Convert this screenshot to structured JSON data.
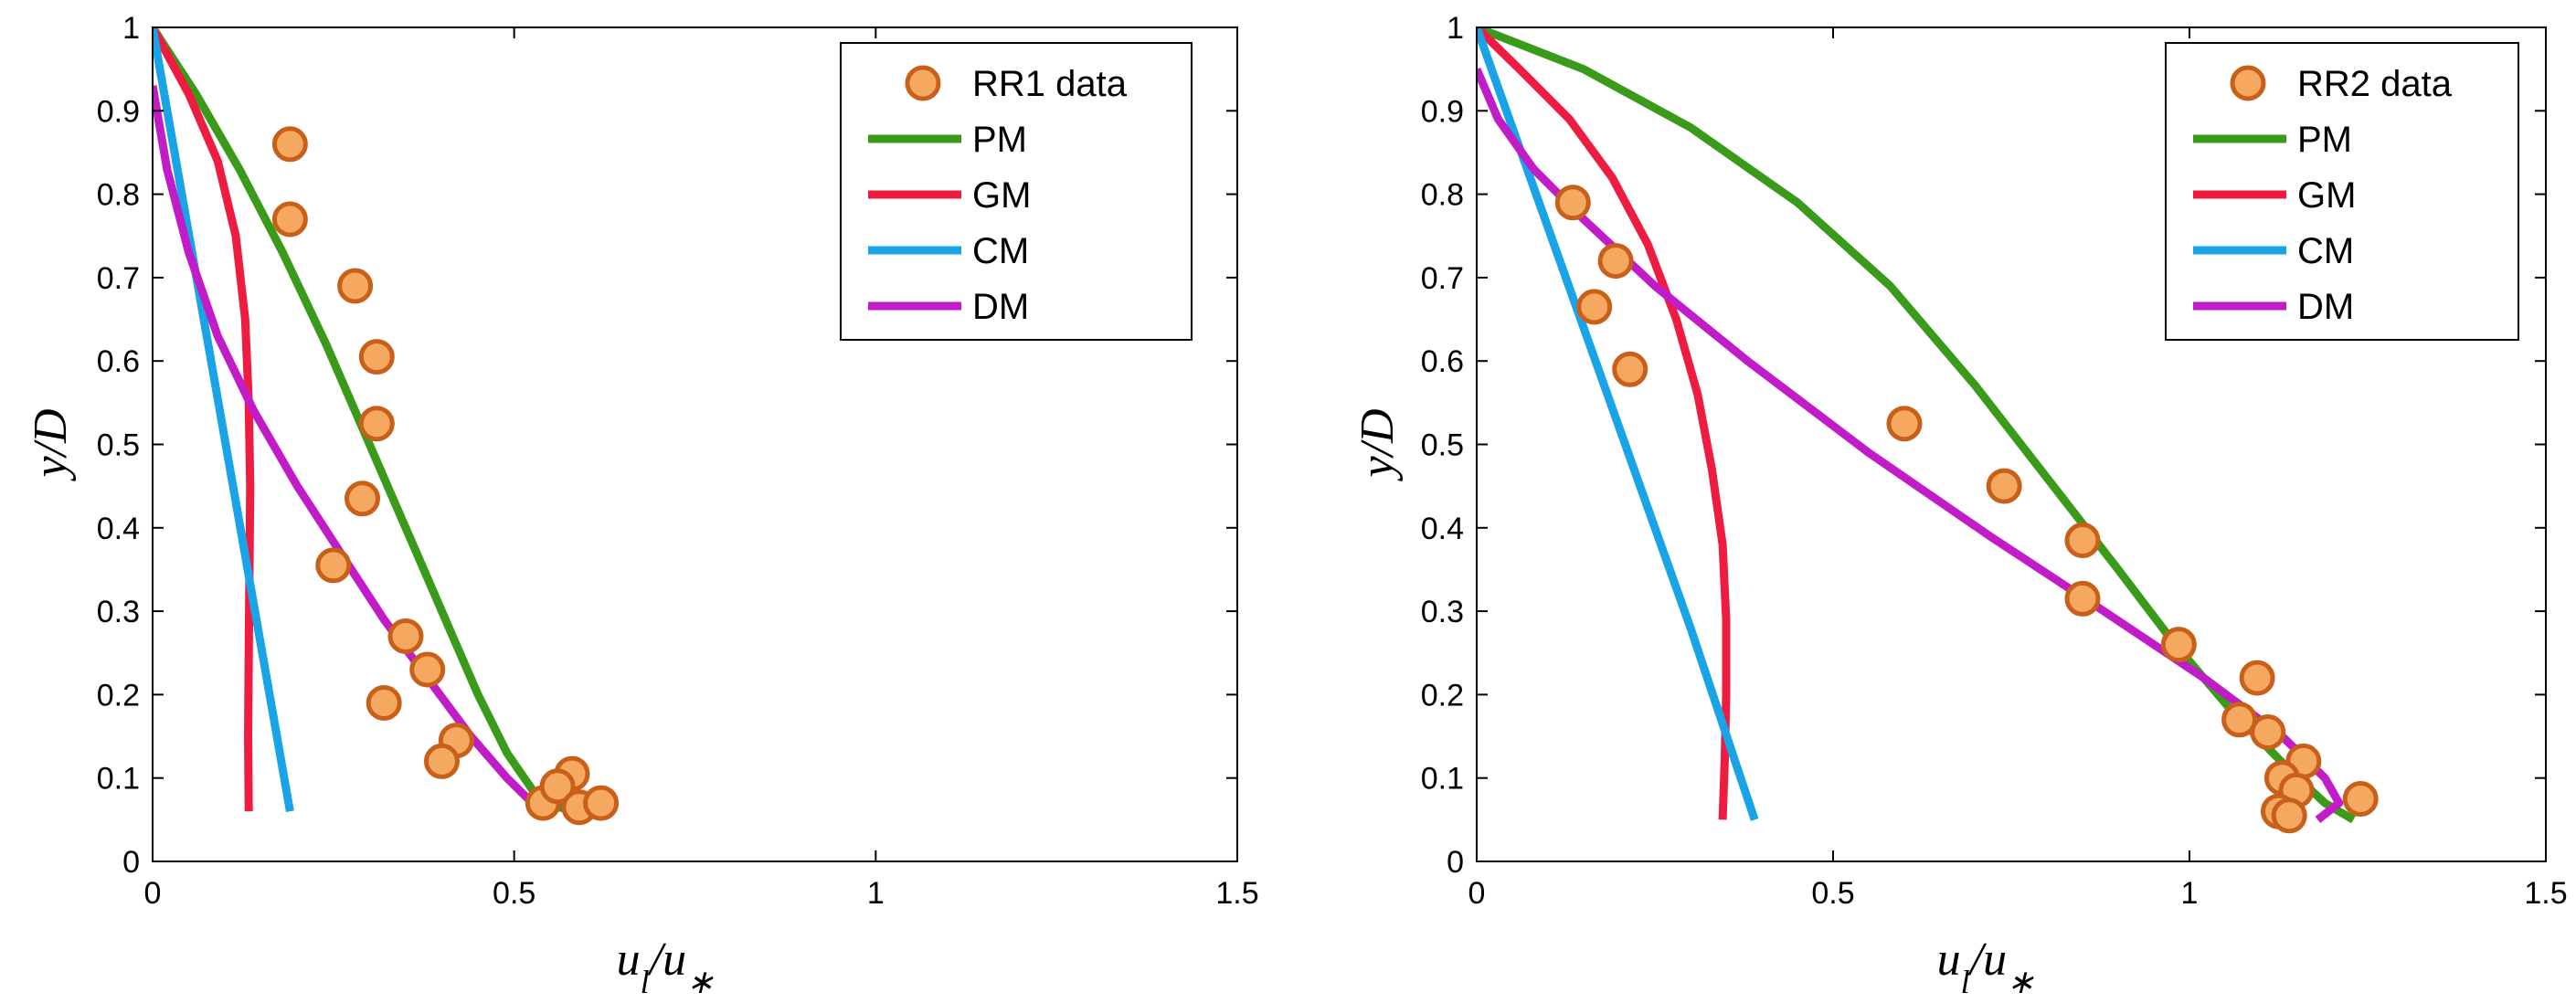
{
  "chart_data": [
    {
      "type": "line",
      "xlabel": "u_l/u_*",
      "ylabel": "y/D",
      "xlim": [
        0,
        1.5
      ],
      "ylim": [
        0,
        1
      ],
      "xticks": [
        0,
        0.5,
        1,
        1.5
      ],
      "xtick_labels": [
        "0",
        "0.5",
        "1",
        "1.5"
      ],
      "yticks": [
        0,
        0.1,
        0.2,
        0.3,
        0.4,
        0.5,
        0.6,
        0.7,
        0.8,
        0.9,
        1
      ],
      "ytick_labels": [
        "0",
        "0.1",
        "0.2",
        "0.3",
        "0.4",
        "0.5",
        "0.6",
        "0.7",
        "0.8",
        "0.9",
        "1"
      ],
      "legend_position": "top-right",
      "grid": false,
      "scatter": {
        "name": "RR1 data",
        "color": "#F5A860",
        "edge_color": "#C8601A",
        "x": [
          0.19,
          0.19,
          0.28,
          0.31,
          0.31,
          0.29,
          0.25,
          0.35,
          0.38,
          0.32,
          0.42,
          0.4,
          0.58,
          0.54,
          0.56,
          0.59,
          0.62
        ],
        "y": [
          0.86,
          0.77,
          0.69,
          0.605,
          0.525,
          0.435,
          0.355,
          0.27,
          0.23,
          0.19,
          0.145,
          0.12,
          0.105,
          0.07,
          0.09,
          0.065,
          0.07
        ]
      },
      "series": [
        {
          "name": "PM",
          "color": "#3A9A1A",
          "x": [
            0.0,
            0.06,
            0.12,
            0.18,
            0.24,
            0.29,
            0.33,
            0.37,
            0.41,
            0.45,
            0.49,
            0.53,
            0.56,
            0.6
          ],
          "y": [
            1.0,
            0.92,
            0.83,
            0.73,
            0.62,
            0.52,
            0.44,
            0.36,
            0.28,
            0.2,
            0.13,
            0.08,
            0.065,
            0.06
          ]
        },
        {
          "name": "GM",
          "color": "#EE1C40",
          "x": [
            0.0,
            0.05,
            0.09,
            0.115,
            0.128,
            0.133,
            0.135,
            0.134,
            0.133,
            0.132,
            0.133
          ],
          "y": [
            1.0,
            0.92,
            0.84,
            0.75,
            0.65,
            0.55,
            0.45,
            0.35,
            0.25,
            0.15,
            0.06
          ]
        },
        {
          "name": "CM",
          "color": "#1AA4E8",
          "x": [
            0.0,
            0.19
          ],
          "y": [
            1.0,
            0.06
          ]
        },
        {
          "name": "DM",
          "color": "#C21CC8",
          "x": [
            0.0,
            0.02,
            0.05,
            0.09,
            0.14,
            0.2,
            0.26,
            0.32,
            0.38,
            0.44,
            0.49,
            0.525
          ],
          "y": [
            0.93,
            0.83,
            0.73,
            0.63,
            0.54,
            0.45,
            0.37,
            0.29,
            0.22,
            0.15,
            0.1,
            0.07
          ]
        }
      ]
    },
    {
      "type": "line",
      "xlabel": "u_l/u_*",
      "ylabel": "y/D",
      "xlim": [
        0,
        1.5
      ],
      "ylim": [
        0,
        1
      ],
      "xticks": [
        0,
        0.5,
        1,
        1.5
      ],
      "xtick_labels": [
        "0",
        "0.5",
        "1",
        "1.5"
      ],
      "yticks": [
        0,
        0.1,
        0.2,
        0.3,
        0.4,
        0.5,
        0.6,
        0.7,
        0.8,
        0.9,
        1
      ],
      "ytick_labels": [
        "0",
        "0.1",
        "0.2",
        "0.3",
        "0.4",
        "0.5",
        "0.6",
        "0.7",
        "0.8",
        "0.9",
        "1"
      ],
      "legend_position": "top-right",
      "grid": false,
      "scatter": {
        "name": "RR2 data",
        "color": "#F5A860",
        "edge_color": "#C8601A",
        "x": [
          0.135,
          0.195,
          0.165,
          0.215,
          0.6,
          0.74,
          0.85,
          0.85,
          0.985,
          1.095,
          1.07,
          1.11,
          1.16,
          1.13,
          1.15,
          1.125,
          1.14,
          1.24
        ],
        "y": [
          0.79,
          0.72,
          0.665,
          0.59,
          0.525,
          0.45,
          0.385,
          0.315,
          0.26,
          0.22,
          0.17,
          0.155,
          0.12,
          0.1,
          0.085,
          0.06,
          0.055,
          0.075
        ]
      },
      "series": [
        {
          "name": "PM",
          "color": "#3A9A1A",
          "x": [
            0.0,
            0.15,
            0.3,
            0.45,
            0.58,
            0.7,
            0.8,
            0.9,
            0.98,
            1.06,
            1.14,
            1.19,
            1.23
          ],
          "y": [
            1.0,
            0.95,
            0.88,
            0.79,
            0.69,
            0.57,
            0.46,
            0.35,
            0.26,
            0.18,
            0.11,
            0.07,
            0.05
          ]
        },
        {
          "name": "GM",
          "color": "#EE1C40",
          "x": [
            0.0,
            0.06,
            0.13,
            0.19,
            0.24,
            0.28,
            0.31,
            0.33,
            0.345,
            0.35,
            0.35,
            0.348,
            0.345
          ],
          "y": [
            1.0,
            0.95,
            0.89,
            0.82,
            0.74,
            0.65,
            0.56,
            0.47,
            0.38,
            0.29,
            0.2,
            0.12,
            0.05
          ]
        },
        {
          "name": "CM",
          "color": "#1AA4E8",
          "x": [
            0.0,
            0.1,
            0.2,
            0.3,
            0.39
          ],
          "y": [
            1.0,
            0.76,
            0.52,
            0.28,
            0.05
          ]
        },
        {
          "name": "DM",
          "color": "#C21CC8",
          "x": [
            0.0,
            0.03,
            0.08,
            0.15,
            0.25,
            0.38,
            0.55,
            0.72,
            0.88,
            1.02,
            1.13,
            1.19,
            1.21,
            1.18
          ],
          "y": [
            0.95,
            0.89,
            0.83,
            0.77,
            0.69,
            0.6,
            0.49,
            0.39,
            0.3,
            0.22,
            0.15,
            0.1,
            0.07,
            0.05
          ]
        }
      ]
    }
  ]
}
